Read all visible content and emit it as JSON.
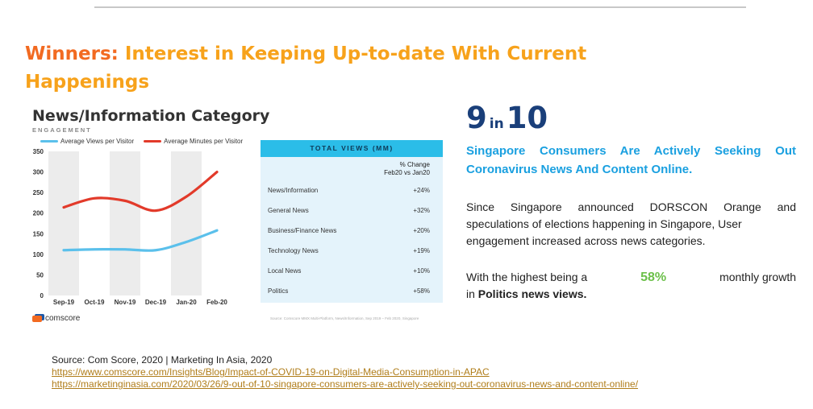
{
  "headline": {
    "lead": "Winners:",
    "rest": "Interest in Keeping Up-to-date With Current Happenings"
  },
  "figure": {
    "title": "News/Information Category",
    "subtitle": "ENGAGEMENT",
    "brand": "comscore",
    "source_note": "Source: Comscore MMX Multi-Platform, News/Information, Sep 2019 – Feb 2020, Singapore"
  },
  "chart_data": [
    {
      "type": "line",
      "title": "",
      "x": [
        "Sep-19",
        "Oct-19",
        "Nov-19",
        "Dec-19",
        "Jan-20",
        "Feb-20"
      ],
      "ylim": [
        0,
        350
      ],
      "yticks": [
        0,
        50,
        100,
        150,
        200,
        250,
        300,
        350
      ],
      "grid": false,
      "legend": "top-left",
      "series": [
        {
          "name": "Average Views per Visitor",
          "color": "#5bc0eb",
          "values": [
            110,
            112,
            112,
            110,
            130,
            158
          ]
        },
        {
          "name": "Average Minutes per Visitor",
          "color": "#e23a2a",
          "values": [
            214,
            236,
            230,
            206,
            240,
            300
          ]
        }
      ]
    },
    {
      "type": "table",
      "title": "TOTAL VIEWS (MM)",
      "column_header": [
        "% Change",
        "Feb20 vs Jan20"
      ],
      "rows": [
        {
          "label": "News/Information",
          "value": "+24%"
        },
        {
          "label": "General News",
          "value": "+32%"
        },
        {
          "label": "Business/Finance News",
          "value": "+20%"
        },
        {
          "label": "Technology News",
          "value": "+19%"
        },
        {
          "label": "Local News",
          "value": "+10%"
        },
        {
          "label": "Politics",
          "value": "+58%"
        }
      ]
    }
  ],
  "stat": {
    "num1": "9",
    "mid": "in",
    "num2": "10"
  },
  "claim": {
    "line1": "Singapore Consumers Are Actively Seeking Out",
    "line2": "Coronavirus News And Content Online."
  },
  "body": {
    "text": "Since Singapore announced DORSCON Orange and speculations of elections happening in Singapore, User",
    "last": "engagement increased across news categories."
  },
  "growth": {
    "prefix": "With the highest being a",
    "pct": "58%",
    "suffix": "monthly growth",
    "in": "in",
    "bold": "Politics news views."
  },
  "sources": {
    "line": "Source: Com Score, 2020  | Marketing In Asia, 2020",
    "link1": "https://www.comscore.com/Insights/Blog/Impact-of-COVID-19-on-Digital-Media-Consumption-in-APAC",
    "link2": "https://marketinginasia.com/2020/03/26/9-out-of-10-singapore-consumers-are-actively-seeking-out-coronavirus-news-and-content-online/"
  }
}
